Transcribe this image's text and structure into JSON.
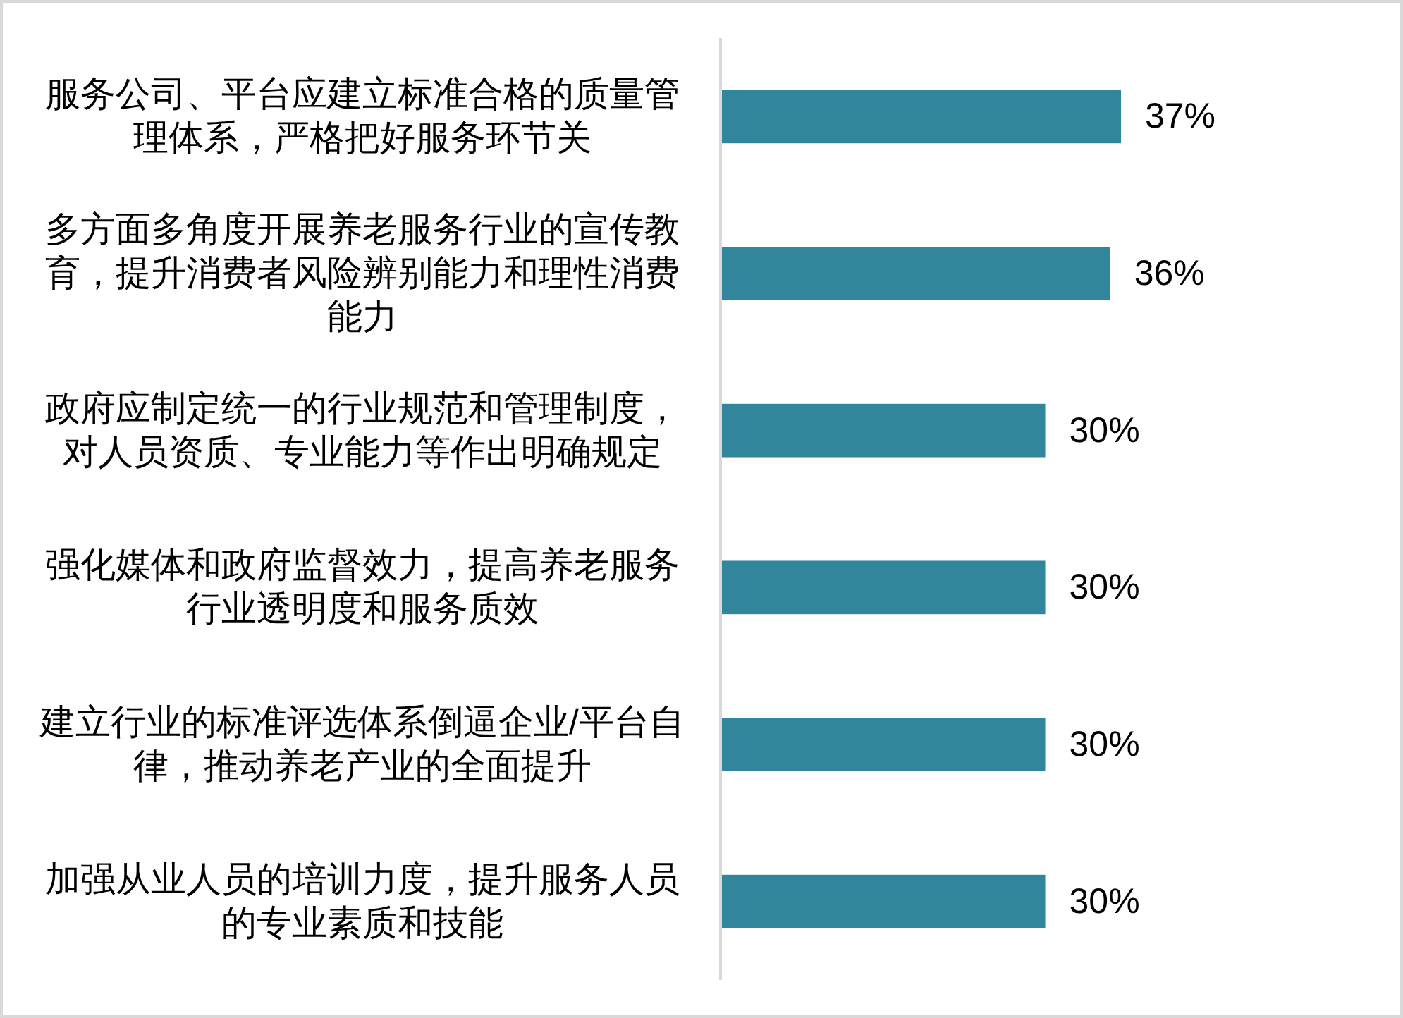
{
  "chart_data": {
    "type": "bar",
    "orientation": "horizontal",
    "categories": [
      "服务公司、平台应建立标准合格的质量管理体系，严格把好服务环节关",
      "多方面多角度开展养老服务行业的宣传教育，提升消费者风险辨别能力和理性消费能力",
      "政府应制定统一的行业规范和管理制度，对人员资质、专业能力等作出明确规定",
      "强化媒体和政府监督效力，提高养老服务行业透明度和服务质效",
      "建立行业的标准评选体系倒逼企业/平台自律，推动养老产业的全面提升",
      "加强从业人员的培训力度，提升服务人员的专业素质和技能"
    ],
    "values": [
      37,
      36,
      30,
      30,
      30,
      30
    ],
    "value_labels": [
      "37%",
      "36%",
      "30%",
      "30%",
      "30%",
      "30%"
    ],
    "color": "#32869c",
    "tick_labels": "y"
  }
}
